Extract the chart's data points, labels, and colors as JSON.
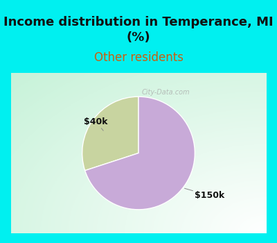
{
  "title": "Income distribution in Temperance, MI\n(%)",
  "subtitle": "Other residents",
  "slices": [
    30,
    70
  ],
  "labels": [
    "$40k",
    "$150k"
  ],
  "colors": [
    "#c8d4a0",
    "#c8aad8"
  ],
  "title_fontsize": 13,
  "subtitle_color": "#c86010",
  "subtitle_fontsize": 12,
  "header_bg": "#00f0f0",
  "watermark": "City-Data.com",
  "start_angle": 90,
  "border_color": "#00e8e8",
  "border_width": 8
}
